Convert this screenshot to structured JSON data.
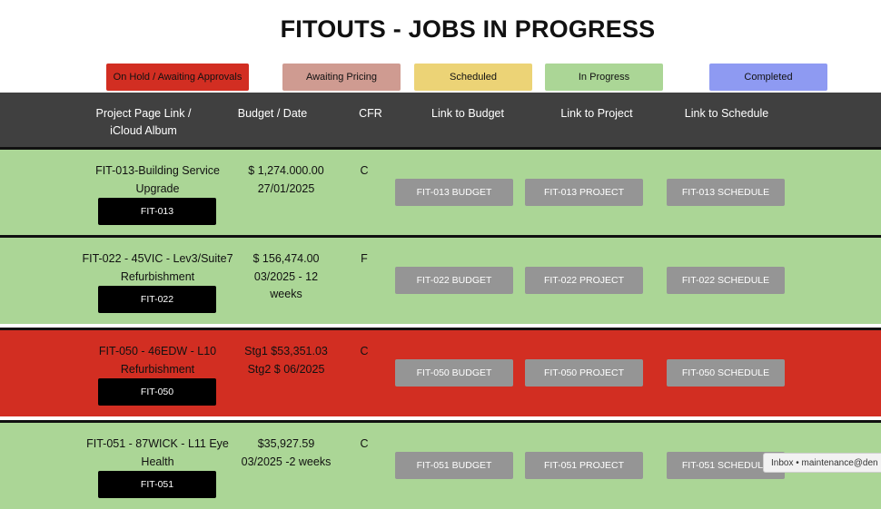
{
  "page": {
    "title": "FITOUTS - JOBS IN PROGRESS"
  },
  "legend": [
    {
      "label": "On Hold / Awaiting Approvals",
      "color": "#d22e22"
    },
    {
      "label": "Awaiting Pricing",
      "color": "#cf9b91"
    },
    {
      "label": "Scheduled",
      "color": "#ecd376"
    },
    {
      "label": "In Progress",
      "color": "#abd696"
    },
    {
      "label": "Completed",
      "color": "#8e9af2"
    }
  ],
  "table": {
    "headers": {
      "project": "Project Page Link / iCloud Album",
      "budget": "Budget / Date",
      "cfr": "CFR",
      "budget_link": "Link to Budget",
      "project_link": "Link to Project",
      "schedule_link": "Link to Schedule"
    },
    "rows": [
      {
        "status": "In Progress",
        "name": "FIT-013-Building Service Upgrade",
        "tag": "FIT-013",
        "budget": "$ 1,274.000.00 27/01/2025",
        "cfr": "C",
        "budget_btn": "FIT-013 BUDGET",
        "project_btn": "FIT-013 PROJECT",
        "schedule_btn": "FIT-013 SCHEDULE"
      },
      {
        "status": "In Progress",
        "name": "FIT-022 - 45VIC - Lev3/Suite7 Refurbishment",
        "tag": "FIT-022",
        "budget": "$ 156,474.00 03/2025 - 12 weeks",
        "cfr": "F",
        "budget_btn": "FIT-022 BUDGET",
        "project_btn": "FIT-022 PROJECT",
        "schedule_btn": "FIT-022 SCHEDULE"
      },
      {
        "status": "On Hold / Awaiting Approvals",
        "name": "FIT-050 - 46EDW - L10 Refurbishment",
        "tag": "FIT-050",
        "budget": "Stg1 $53,351.03 Stg2 $ 06/2025",
        "cfr": "C",
        "budget_btn": "FIT-050 BUDGET",
        "project_btn": "FIT-050 PROJECT",
        "schedule_btn": "FIT-050 SCHEDULE"
      },
      {
        "status": "In Progress",
        "name": "FIT-051 - 87WICK - L11 Eye Health",
        "tag": "FIT-051",
        "budget": "$35,927.59 03/2025 -2 weeks",
        "cfr": "C",
        "budget_btn": "FIT-051 BUDGET",
        "project_btn": "FIT-051 PROJECT",
        "schedule_btn": "FIT-051 SCHEDULE"
      }
    ]
  },
  "toast": {
    "text": "Inbox • maintenance@den"
  }
}
